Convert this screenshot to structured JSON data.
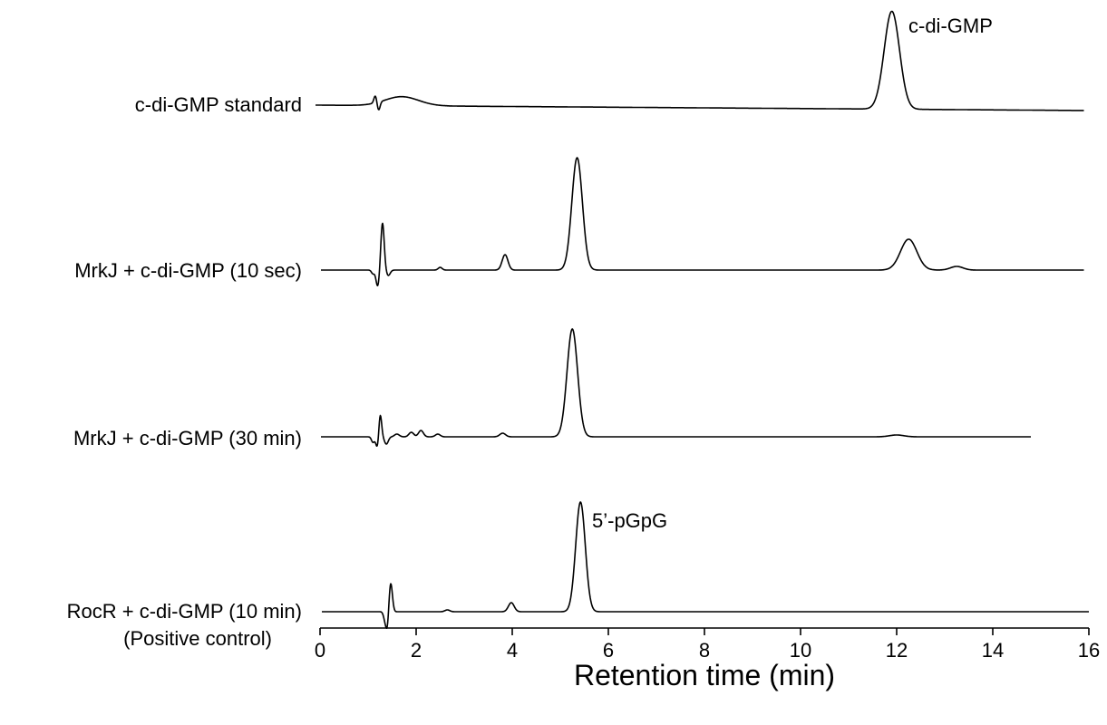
{
  "chart_data": {
    "type": "line",
    "xlabel": "Retention time (min)",
    "ylabel": "",
    "xlim": [
      0,
      16
    ],
    "xticks": [
      0,
      2,
      4,
      6,
      8,
      10,
      12,
      14,
      16
    ],
    "grid": false,
    "series": [
      {
        "name": "c-di-GMP standard",
        "x_end": 15.9,
        "peaks": [
          {
            "x": 1.15,
            "height": 8,
            "width": 0.03
          },
          {
            "x": 1.22,
            "height": -9,
            "width": 0.03
          },
          {
            "x": 1.7,
            "height": 10,
            "width": 0.35
          },
          {
            "x": 11.9,
            "height": 108,
            "width": 0.16
          }
        ],
        "annotation": "c-di-GMP"
      },
      {
        "name": "MrkJ + c-di-GMP (10 sec)",
        "x_end": 15.9,
        "peaks": [
          {
            "x": 1.1,
            "height": -4,
            "width": 0.03
          },
          {
            "x": 1.2,
            "height": -18,
            "width": 0.035
          },
          {
            "x": 1.3,
            "height": 52,
            "width": 0.035
          },
          {
            "x": 1.42,
            "height": -6,
            "width": 0.04
          },
          {
            "x": 2.5,
            "height": 3,
            "width": 0.04
          },
          {
            "x": 3.85,
            "height": 17,
            "width": 0.06
          },
          {
            "x": 5.35,
            "height": 124,
            "width": 0.11
          },
          {
            "x": 12.25,
            "height": 34,
            "width": 0.17
          },
          {
            "x": 13.25,
            "height": 4,
            "width": 0.13
          }
        ]
      },
      {
        "name": "MrkJ + c-di-GMP (30 min)",
        "x_end": 14.8,
        "peaks": [
          {
            "x": 1.1,
            "height": -6,
            "width": 0.03
          },
          {
            "x": 1.2,
            "height": -14,
            "width": 0.035
          },
          {
            "x": 1.25,
            "height": 28,
            "width": 0.03
          },
          {
            "x": 1.38,
            "height": -8,
            "width": 0.04
          },
          {
            "x": 1.6,
            "height": 3,
            "width": 0.05
          },
          {
            "x": 1.9,
            "height": 5,
            "width": 0.05
          },
          {
            "x": 2.1,
            "height": 7,
            "width": 0.05
          },
          {
            "x": 2.45,
            "height": 3,
            "width": 0.05
          },
          {
            "x": 3.8,
            "height": 4,
            "width": 0.06
          },
          {
            "x": 5.25,
            "height": 119,
            "width": 0.11
          },
          {
            "x": 12.0,
            "height": 2,
            "width": 0.15
          }
        ]
      },
      {
        "name": "RocR + c-di-GMP (10 min)",
        "x_end": 16.0,
        "peaks": [
          {
            "x": 1.35,
            "height": -8,
            "width": 0.03
          },
          {
            "x": 1.4,
            "height": -18,
            "width": 0.03
          },
          {
            "x": 1.47,
            "height": 32,
            "width": 0.035
          },
          {
            "x": 2.65,
            "height": 2,
            "width": 0.05
          },
          {
            "x": 3.98,
            "height": 10,
            "width": 0.06
          },
          {
            "x": 5.42,
            "height": 121,
            "width": 0.1
          }
        ],
        "annotation": "5’-pGpG"
      }
    ]
  },
  "labels": {
    "trace1": "c-di-GMP standard",
    "trace2": "MrkJ + c-di-GMP (10 sec)",
    "trace3": "MrkJ + c-di-GMP (30 min)",
    "trace4": "RocR + c-di-GMP (10 min)",
    "trace4_sub": "(Positive control)",
    "peak_cdigmp": "c-di-GMP",
    "peak_pgpg": "5’-pGpG",
    "xaxis_title": "Retention time (min)"
  }
}
